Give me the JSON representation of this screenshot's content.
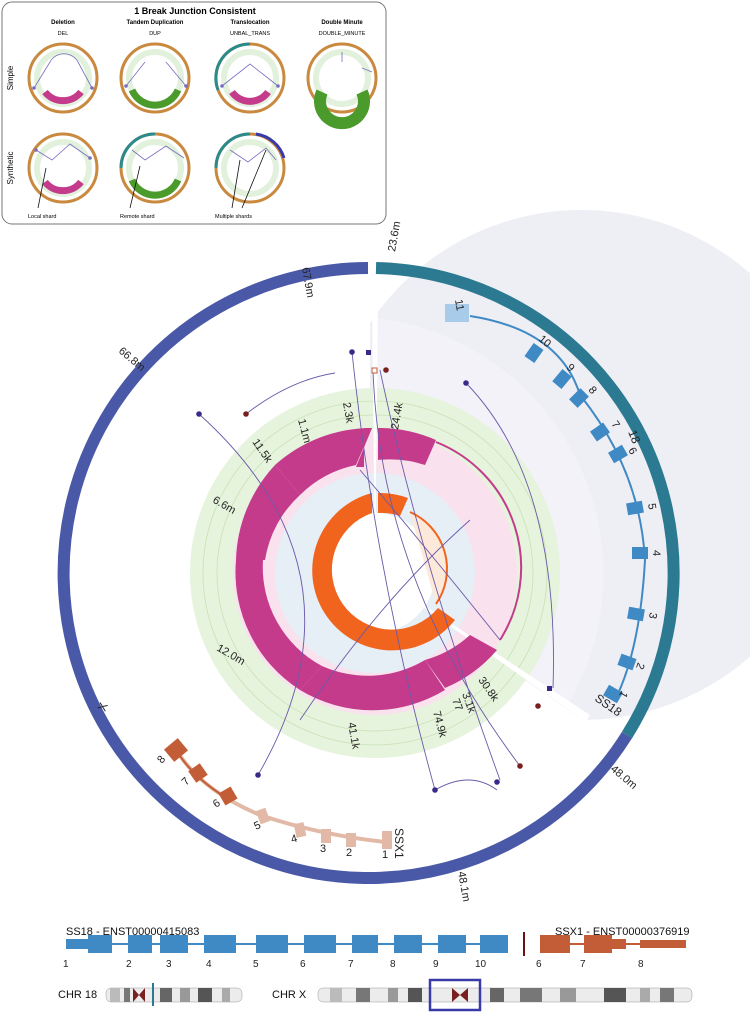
{
  "legend": {
    "title": "1 Break Junction Consistent",
    "columns": [
      {
        "name": "Deletion",
        "code": "DEL"
      },
      {
        "name": "Tandem Duplication",
        "code": "DUP"
      },
      {
        "name": "Translocation",
        "code": "UNBAL_TRANS"
      },
      {
        "name": "Double Minute",
        "code": "DOUBLE_MINUTE"
      }
    ],
    "rows": [
      "Simple",
      "Synthetic"
    ],
    "annotations": [
      "Local shard",
      "Remote shard",
      "Multiple shards"
    ]
  },
  "circos": {
    "outer_labels": [
      "67.9m",
      "23.6m",
      "66.8m",
      "48.0m",
      "48.1m"
    ],
    "chromosome_labels": [
      "18",
      "X"
    ],
    "gene_labels": [
      "SS18",
      "SSX1"
    ],
    "ss18_exons": [
      "11",
      "10",
      "9",
      "8",
      "7",
      "6",
      "5",
      "4",
      "3",
      "2",
      "1"
    ],
    "ssx1_exons": [
      "8",
      "7",
      "6",
      "5",
      "4",
      "3",
      "2",
      "1"
    ],
    "segment_labels": [
      "1.1m",
      "2.3k",
      "24.4k",
      "11.5k",
      "6.6m",
      "12.0m",
      "41.1k",
      "74.9k",
      "3.1k",
      "77",
      "30.8k"
    ]
  },
  "transcripts": {
    "left": {
      "label": "SS18 - ENST00000415083",
      "numbers": [
        "1",
        "2",
        "3",
        "4",
        "5",
        "6",
        "7",
        "8",
        "9",
        "10"
      ]
    },
    "right": {
      "label": "SSX1 - ENST00000376919",
      "numbers": [
        "6",
        "7",
        "8"
      ]
    }
  },
  "ideograms": {
    "left": "CHR 18",
    "right": "CHR X"
  },
  "colors": {
    "chr18": "#2b7a92",
    "chrX": "#4a59a7",
    "ss18_exon": "#3f8ac4",
    "ssx1_exon": "#c25d37",
    "ssx1_exon_light": "#e2b9a6",
    "copy_number": "#c53b8c",
    "minor_allele": "#f0641e",
    "link": "#6b5aa8"
  }
}
